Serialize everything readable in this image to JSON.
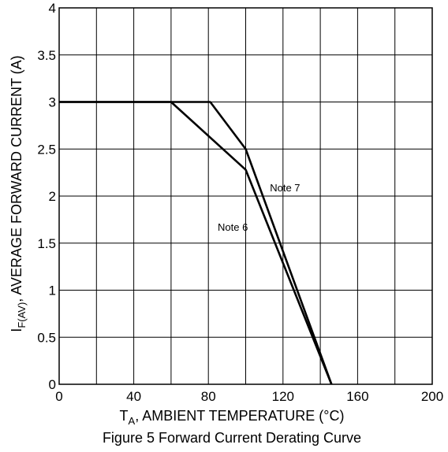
{
  "chart_data": {
    "type": "line",
    "title": "Figure 5 Forward Current Derating Curve",
    "xlabel": {
      "main": "T",
      "sub": "A",
      "rest": ", AMBIENT TEMPERATURE (°C)"
    },
    "ylabel": {
      "main": "I",
      "sub": "F(AV)",
      "rest": ", AVERAGE FORWARD CURRENT (A)"
    },
    "xlim": [
      0,
      200
    ],
    "ylim": [
      0,
      4
    ],
    "x_ticks": [
      0,
      40,
      80,
      120,
      160,
      200
    ],
    "x_tick_labels": [
      "0",
      "40",
      "80",
      "120",
      "160",
      "200"
    ],
    "y_ticks": [
      0,
      0.5,
      1,
      1.5,
      2,
      2.5,
      3,
      3.5,
      4
    ],
    "y_tick_labels": [
      "0",
      "0.5",
      "1",
      "1.5",
      "2",
      "2.5",
      "3",
      "3.5",
      "4"
    ],
    "x_grid_step": 20,
    "y_grid_step": 0.5,
    "grid": true,
    "line_color": "#000000",
    "series": [
      {
        "name": "Note 6",
        "x": [
          0,
          60,
          100,
          146
        ],
        "y": [
          3,
          3,
          2.28,
          0
        ]
      },
      {
        "name": "Note 7",
        "x": [
          0,
          81,
          100,
          146
        ],
        "y": [
          3,
          3,
          2.5,
          0
        ]
      }
    ],
    "annotations": [
      {
        "text": "Note 7",
        "x": 113,
        "y": 2.05
      },
      {
        "text": "Note 6",
        "x": 85,
        "y": 1.63
      }
    ]
  }
}
